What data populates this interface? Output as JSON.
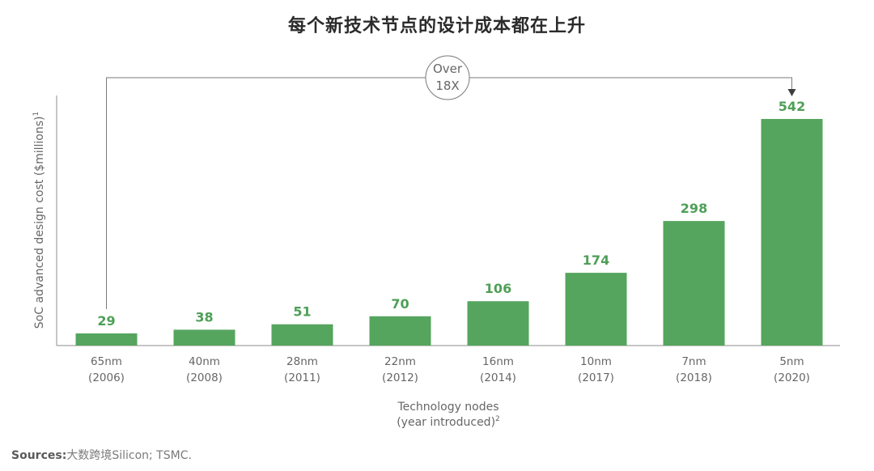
{
  "chart_data": {
    "type": "bar",
    "title": "每个新技术节点的设计成本都在上升",
    "categories": [
      "65nm",
      "40nm",
      "28nm",
      "22nm",
      "16nm",
      "10nm",
      "7nm",
      "5nm"
    ],
    "years": [
      "(2006)",
      "(2008)",
      "(2011)",
      "(2012)",
      "(2014)",
      "(2017)",
      "(2018)",
      "(2020)"
    ],
    "values": [
      29,
      38,
      51,
      70,
      106,
      174,
      298,
      542
    ],
    "value_labels": [
      "29",
      "38",
      "51",
      "70",
      "106",
      "174",
      "298",
      "542"
    ],
    "xlabel": "Technology nodes",
    "xlabel_line2": "(year introduced)",
    "xlabel_sup": "2",
    "ylabel": "SoC advanced design cost ($millions)",
    "ylabel_sup": "1",
    "ylim": [
      0,
      600
    ],
    "grid": false,
    "annotation": {
      "line1": "Over",
      "line2": "18X",
      "from_category": "65nm",
      "to_category": "5nm"
    },
    "bar_color": "#55a55e",
    "label_color": "#4e9f57"
  },
  "source": {
    "prefix": "Sources:",
    "watermark": "大数跨境",
    "text": "Silicon; TSMC."
  }
}
